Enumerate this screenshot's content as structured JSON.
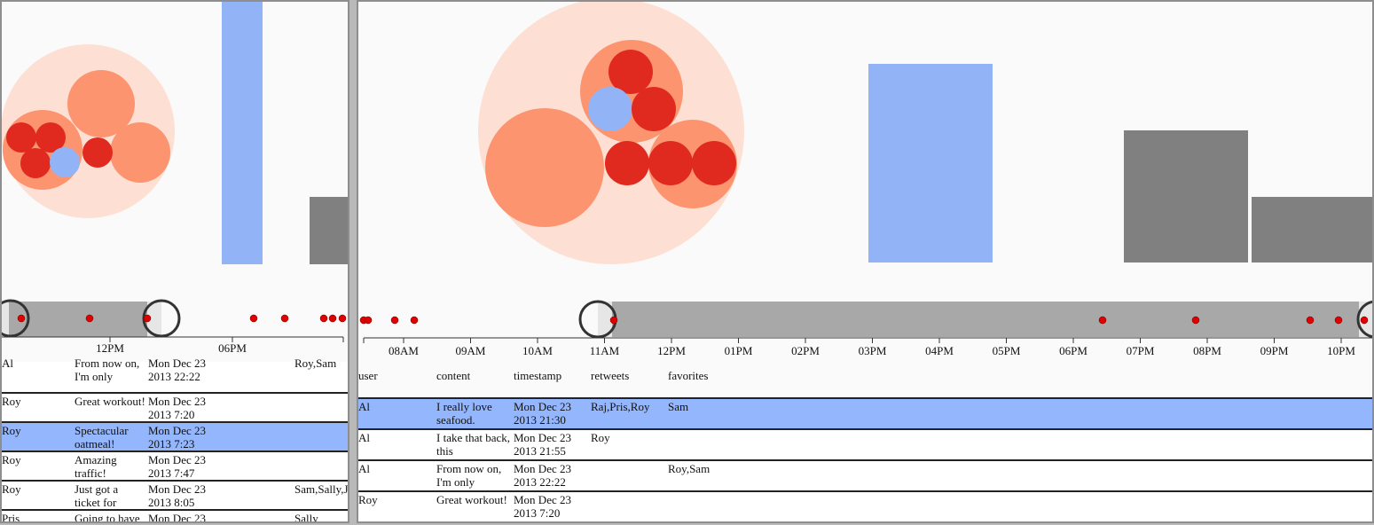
{
  "left": {
    "axis_ticks": [
      "12PM",
      "06PM"
    ],
    "rows": [
      {
        "user": "Al",
        "content": "From now on, I'm only",
        "timestamp": "Mon Dec 23 2013 22:22",
        "retweets": "",
        "favorites": "Roy,Sam",
        "selected": false
      },
      {
        "user": "Roy",
        "content": "Great workout!",
        "timestamp": "Mon Dec 23 2013 7:20",
        "retweets": "",
        "favorites": "",
        "selected": false
      },
      {
        "user": "Roy",
        "content": "Spectacular oatmeal!",
        "timestamp": "Mon Dec 23 2013 7:23",
        "retweets": "",
        "favorites": "",
        "selected": true
      },
      {
        "user": "Roy",
        "content": "Amazing traffic!",
        "timestamp": "Mon Dec 23 2013 7:47",
        "retweets": "",
        "favorites": "",
        "selected": false
      },
      {
        "user": "Roy",
        "content": "Just got a ticket for",
        "timestamp": "Mon Dec 23 2013 8:05",
        "retweets": "",
        "favorites": "Sam,Sally,J",
        "selected": false
      },
      {
        "user": "Pris",
        "content": "Going to have",
        "timestamp": "Mon Dec 23",
        "retweets": "",
        "favorites": "Sally",
        "selected": false
      }
    ]
  },
  "right": {
    "axis_ticks": [
      "08AM",
      "09AM",
      "10AM",
      "11AM",
      "12PM",
      "01PM",
      "02PM",
      "03PM",
      "04PM",
      "05PM",
      "06PM",
      "07PM",
      "08PM",
      "09PM",
      "10PM"
    ],
    "table_headers": {
      "user": "user",
      "content": "content",
      "timestamp": "timestamp",
      "retweets": "retweets",
      "favorites": "favorites"
    },
    "rows": [
      {
        "user": "Al",
        "content": "I really love seafood.",
        "timestamp": "Mon Dec 23 2013 21:30",
        "retweets": "Raj,Pris,Roy",
        "favorites": "Sam",
        "selected": true
      },
      {
        "user": "Al",
        "content": "I take that back, this",
        "timestamp": "Mon Dec 23 2013 21:55",
        "retweets": "Roy",
        "favorites": "",
        "selected": false
      },
      {
        "user": "Al",
        "content": "From now on, I'm only",
        "timestamp": "Mon Dec 23 2013 22:22",
        "retweets": "",
        "favorites": "Roy,Sam",
        "selected": false
      },
      {
        "user": "Roy",
        "content": "Great workout!",
        "timestamp": "Mon Dec 23 2013 7:20",
        "retweets": "",
        "favorites": "",
        "selected": false
      }
    ]
  },
  "colors": {
    "bubble_outer": "#fde0d3",
    "bubble_mid": "#fc9470",
    "bubble_dark": "#e0291f",
    "bubble_blue": "#92b4f7",
    "bar_blue": "#92b4f7",
    "bar_gray": "#808080",
    "brush_fill": "#a8a8a8",
    "event_dot": "#e00000",
    "row_selected": "#94b6fc"
  }
}
